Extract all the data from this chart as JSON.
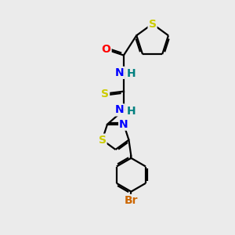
{
  "bg_color": "#ebebeb",
  "bond_color": "#000000",
  "bond_width": 1.6,
  "atom_colors": {
    "S": "#cccc00",
    "O": "#ff0000",
    "N": "#0000ff",
    "H": "#008080",
    "Br": "#cc6600",
    "C": "#000000"
  },
  "font_size_atoms": 10,
  "figsize": [
    3.0,
    3.0
  ],
  "dpi": 100,
  "xlim": [
    0,
    10
  ],
  "ylim": [
    0,
    10
  ]
}
